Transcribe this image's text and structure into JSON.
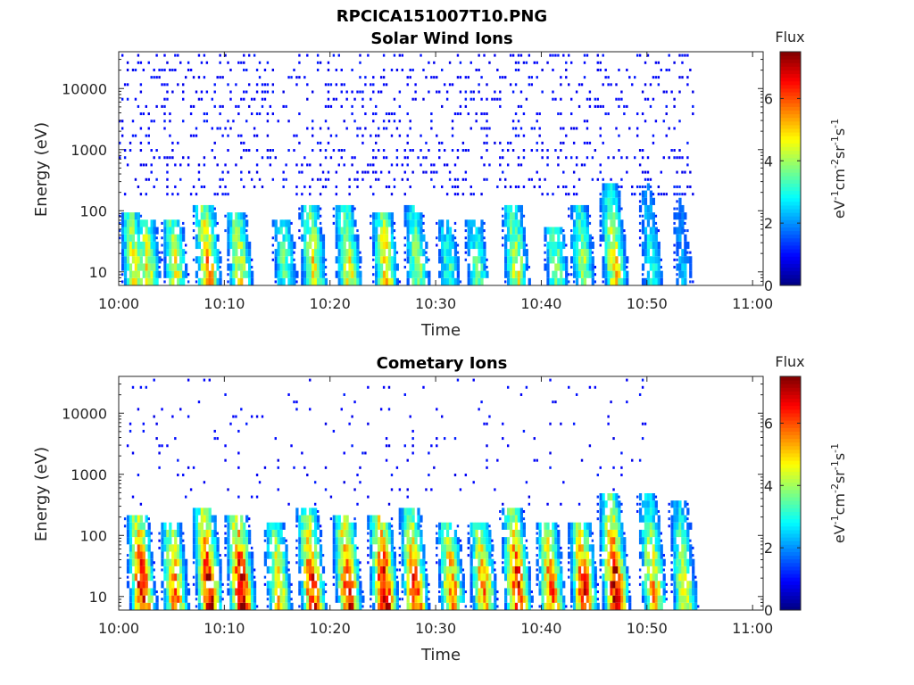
{
  "figure": {
    "title": "RPCICA151007T10.PNG"
  },
  "chart_data": [
    {
      "type": "heatmap",
      "title": "Solar Wind Ions",
      "xlabel": "Time",
      "ylabel": "Energy (eV)",
      "x_ticks": [
        "10:00",
        "10:10",
        "10:20",
        "10:30",
        "10:40",
        "10:50",
        "11:00"
      ],
      "x_range_minutes": [
        0,
        61
      ],
      "y_ticks": [
        "10",
        "100",
        "1000",
        "10000"
      ],
      "y_scale": "log",
      "y_range": [
        6,
        40000
      ],
      "colorbar": {
        "label": "Flux",
        "unit": "eV-1cm-2sr-1s-1",
        "ticks": [
          "0",
          "2",
          "4",
          "6"
        ],
        "range": [
          0,
          7.5
        ],
        "colormap": "jet"
      },
      "bursts": [
        {
          "t": 1.5,
          "flux": 4.5,
          "emax": 80
        },
        {
          "t": 2.8,
          "flux": 4.6,
          "emax": 60
        },
        {
          "t": 5.4,
          "flux": 4.4,
          "emax": 70
        },
        {
          "t": 8.5,
          "flux": 5.4,
          "emax": 100
        },
        {
          "t": 11.5,
          "flux": 4.6,
          "emax": 80
        },
        {
          "t": 15.8,
          "flux": 3.5,
          "emax": 60
        },
        {
          "t": 18.5,
          "flux": 4.7,
          "emax": 100
        },
        {
          "t": 21.8,
          "flux": 4.7,
          "emax": 100
        },
        {
          "t": 25.3,
          "flux": 5.0,
          "emax": 80
        },
        {
          "t": 28.3,
          "flux": 4.0,
          "emax": 100
        },
        {
          "t": 31.3,
          "flux": 3.2,
          "emax": 60
        },
        {
          "t": 34.0,
          "flux": 3.4,
          "emax": 60
        },
        {
          "t": 37.7,
          "flux": 4.4,
          "emax": 100
        },
        {
          "t": 41.5,
          "flux": 3.8,
          "emax": 50
        },
        {
          "t": 44.0,
          "flux": 4.1,
          "emax": 100
        },
        {
          "t": 47.0,
          "flux": 4.8,
          "emax": 250
        },
        {
          "t": 50.5,
          "flux": 3.0,
          "emax": 250
        },
        {
          "t": 53.5,
          "flux": 2.3,
          "emax": 250
        }
      ],
      "background": {
        "flux": 0.9,
        "density": 0.22,
        "emin": 150,
        "emax": 35000,
        "tmax": 54.5
      }
    },
    {
      "type": "heatmap",
      "title": "Cometary Ions",
      "xlabel": "Time",
      "ylabel": "Energy (eV)",
      "x_ticks": [
        "10:00",
        "10:10",
        "10:20",
        "10:30",
        "10:40",
        "10:50",
        "11:00"
      ],
      "x_range_minutes": [
        0,
        61
      ],
      "y_ticks": [
        "10",
        "100",
        "1000",
        "10000"
      ],
      "y_scale": "log",
      "y_range": [
        6,
        40000
      ],
      "colorbar": {
        "label": "Flux",
        "unit": "eV-1cm-2sr-1s-1",
        "ticks": [
          "0",
          "2",
          "4",
          "6"
        ],
        "range": [
          0,
          7.5
        ],
        "colormap": "jet"
      },
      "bursts": [
        {
          "t": 2.3,
          "flux": 6.7,
          "emax": 200
        },
        {
          "t": 5.4,
          "flux": 5.6,
          "emax": 150
        },
        {
          "t": 8.6,
          "flux": 6.8,
          "emax": 250
        },
        {
          "t": 11.7,
          "flux": 6.9,
          "emax": 180
        },
        {
          "t": 15.2,
          "flux": 5.0,
          "emax": 150
        },
        {
          "t": 18.4,
          "flux": 6.4,
          "emax": 250
        },
        {
          "t": 21.8,
          "flux": 6.5,
          "emax": 180
        },
        {
          "t": 25.2,
          "flux": 7.0,
          "emax": 200
        },
        {
          "t": 28.1,
          "flux": 6.2,
          "emax": 250
        },
        {
          "t": 31.6,
          "flux": 5.6,
          "emax": 150
        },
        {
          "t": 34.6,
          "flux": 5.6,
          "emax": 150
        },
        {
          "t": 37.8,
          "flux": 6.6,
          "emax": 250
        },
        {
          "t": 41.0,
          "flux": 5.8,
          "emax": 150
        },
        {
          "t": 44.1,
          "flux": 6.3,
          "emax": 150
        },
        {
          "t": 47.1,
          "flux": 7.2,
          "emax": 400
        },
        {
          "t": 50.7,
          "flux": 5.2,
          "emax": 450
        },
        {
          "t": 53.6,
          "flux": 4.6,
          "emax": 300
        }
      ],
      "background": {
        "flux": 0.9,
        "density": 0.05,
        "emin": 300,
        "emax": 35000,
        "tmax": 50
      }
    }
  ]
}
